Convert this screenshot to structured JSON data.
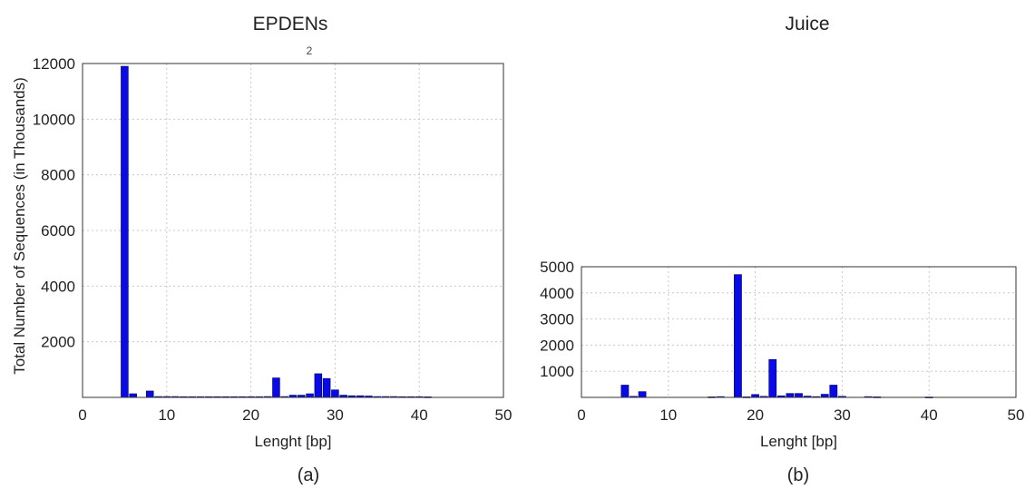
{
  "figure": {
    "panel_labels": [
      "(a)",
      "(b)"
    ]
  },
  "chart_data": [
    {
      "type": "bar",
      "title": "EPDENs",
      "annotation": "2",
      "xlabel": "Lenght [bp]",
      "ylabel": "Total Number of Sequences (in Thousands)",
      "xlim": [
        0,
        50
      ],
      "ylim": [
        0,
        12000
      ],
      "xticks": [
        0,
        10,
        20,
        30,
        40,
        50
      ],
      "yticks": [
        2000,
        4000,
        6000,
        8000,
        10000,
        12000
      ],
      "grid": true,
      "color": "#0a0ae6",
      "x": [
        5,
        6,
        8,
        9,
        10,
        11,
        12,
        13,
        14,
        15,
        16,
        17,
        18,
        19,
        20,
        21,
        22,
        23,
        24,
        25,
        26,
        27,
        28,
        29,
        30,
        31,
        32,
        33,
        34,
        35,
        36,
        37,
        38,
        39,
        40,
        41
      ],
      "values": [
        11900,
        130,
        230,
        30,
        30,
        30,
        25,
        25,
        25,
        25,
        25,
        25,
        25,
        25,
        25,
        25,
        30,
        700,
        30,
        80,
        80,
        130,
        850,
        680,
        270,
        80,
        60,
        60,
        50,
        30,
        30,
        30,
        25,
        25,
        25,
        20
      ]
    },
    {
      "type": "bar",
      "title": "Juice",
      "xlabel": "Lenght [bp]",
      "ylabel": "",
      "xlim": [
        0,
        50
      ],
      "ylim": [
        0,
        5000
      ],
      "xticks": [
        0,
        10,
        20,
        30,
        40,
        50
      ],
      "yticks": [
        1000,
        2000,
        3000,
        4000,
        5000
      ],
      "grid": true,
      "color": "#0a0ae6",
      "x": [
        5,
        6,
        7,
        15,
        16,
        18,
        19,
        20,
        21,
        22,
        23,
        24,
        25,
        26,
        27,
        28,
        29,
        30,
        33,
        34,
        40
      ],
      "values": [
        470,
        40,
        220,
        20,
        30,
        4700,
        20,
        110,
        40,
        1450,
        60,
        150,
        150,
        50,
        30,
        120,
        470,
        40,
        30,
        20,
        15
      ]
    }
  ]
}
